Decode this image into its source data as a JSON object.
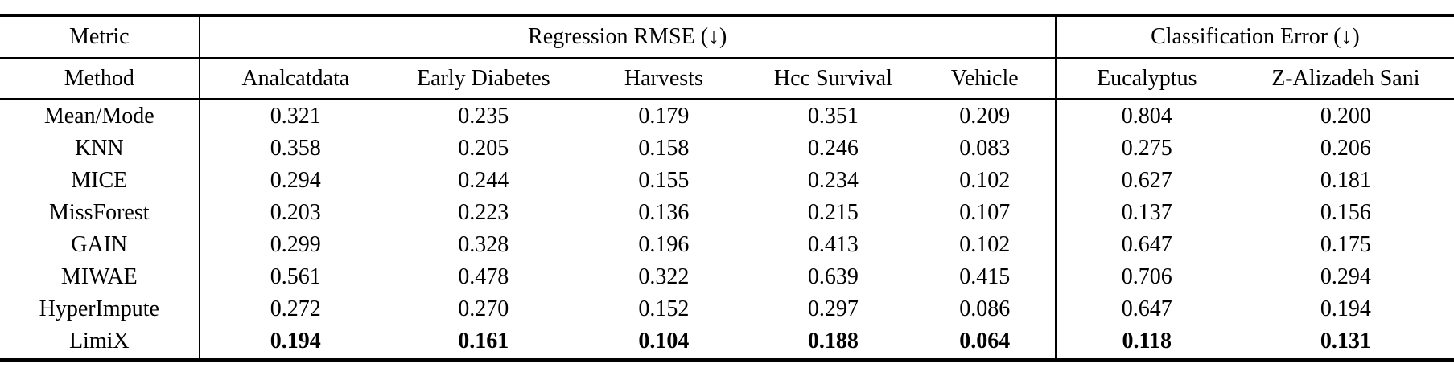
{
  "table": {
    "group_header": {
      "metric_label": "Metric",
      "regression_label": "Regression RMSE (↓)",
      "classification_label": "Classification Error (↓)"
    },
    "column_header": {
      "method_label": "Method",
      "regression_datasets": [
        "Analcatdata",
        "Early Diabetes",
        "Harvests",
        "Hcc Survival",
        "Vehicle"
      ],
      "classification_datasets": [
        "Eucalyptus",
        "Z-Alizadeh Sani"
      ]
    },
    "rows": [
      {
        "method": "Mean/Mode",
        "values": [
          "0.321",
          "0.235",
          "0.179",
          "0.351",
          "0.209",
          "0.804",
          "0.200"
        ],
        "bold": false
      },
      {
        "method": "KNN",
        "values": [
          "0.358",
          "0.205",
          "0.158",
          "0.246",
          "0.083",
          "0.275",
          "0.206"
        ],
        "bold": false
      },
      {
        "method": "MICE",
        "values": [
          "0.294",
          "0.244",
          "0.155",
          "0.234",
          "0.102",
          "0.627",
          "0.181"
        ],
        "bold": false
      },
      {
        "method": "MissForest",
        "values": [
          "0.203",
          "0.223",
          "0.136",
          "0.215",
          "0.107",
          "0.137",
          "0.156"
        ],
        "bold": false
      },
      {
        "method": "GAIN",
        "values": [
          "0.299",
          "0.328",
          "0.196",
          "0.413",
          "0.102",
          "0.647",
          "0.175"
        ],
        "bold": false
      },
      {
        "method": "MIWAE",
        "values": [
          "0.561",
          "0.478",
          "0.322",
          "0.639",
          "0.415",
          "0.706",
          "0.294"
        ],
        "bold": false
      },
      {
        "method": "HyperImpute",
        "values": [
          "0.272",
          "0.270",
          "0.152",
          "0.297",
          "0.086",
          "0.647",
          "0.194"
        ],
        "bold": false
      },
      {
        "method": "LimiX",
        "values": [
          "0.194",
          "0.161",
          "0.104",
          "0.188",
          "0.064",
          "0.118",
          "0.131"
        ],
        "bold": true
      }
    ]
  },
  "colors": {
    "text": "#000000",
    "background": "#ffffff",
    "rule": "#000000"
  }
}
